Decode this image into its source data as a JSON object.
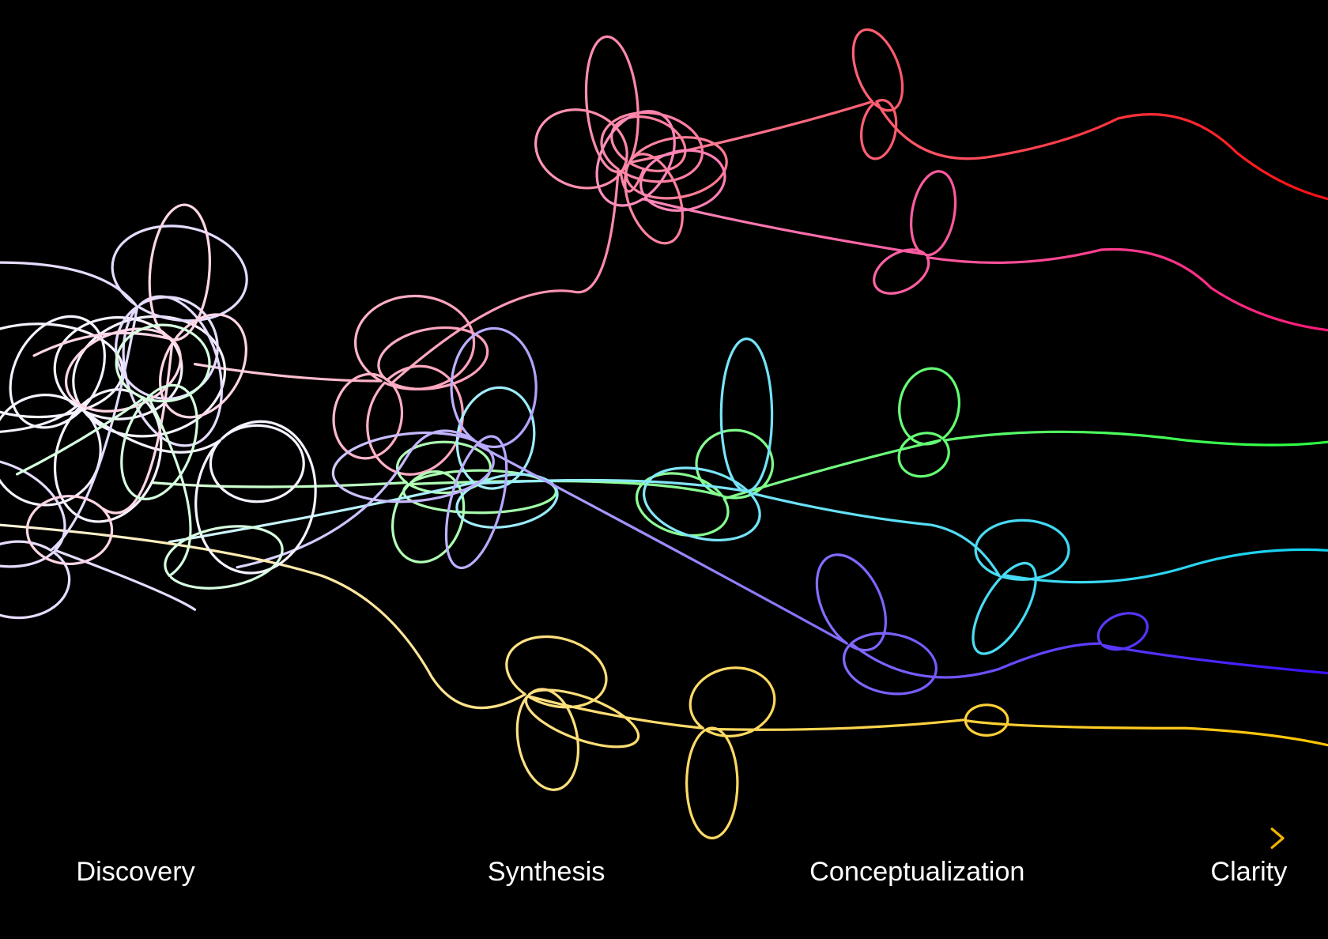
{
  "axis": {
    "stages": [
      "Discovery",
      "Synthesis",
      "Conceptualization",
      "Clarity"
    ]
  }
}
